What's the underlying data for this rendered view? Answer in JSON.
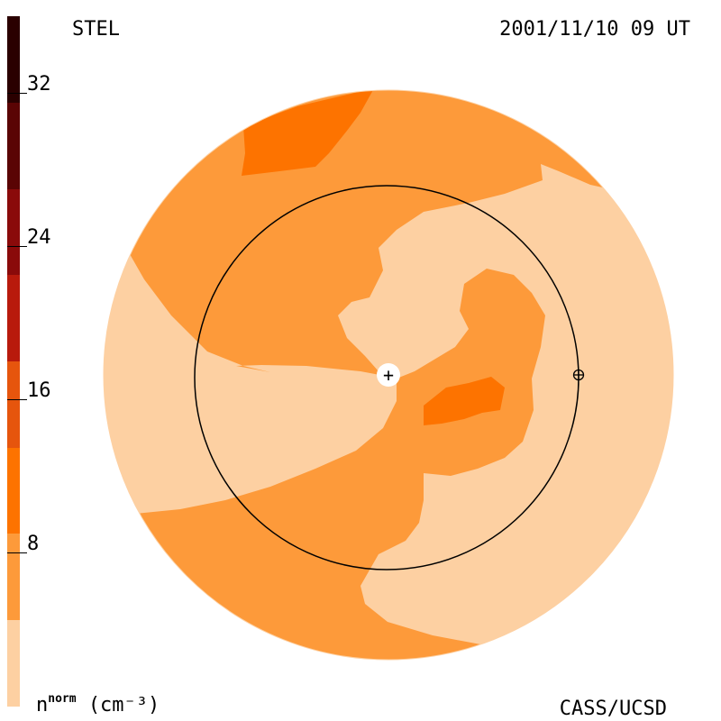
{
  "header": {
    "source": "STEL",
    "timestamp": "2001/11/10 09 UT"
  },
  "footer": {
    "units_base": "n",
    "units_sup": "norm",
    "units_rest": "(cm⁻³)",
    "credit": "CASS/UCSD"
  },
  "colorbar": {
    "levels": [
      {
        "color": "#fdd0a2"
      },
      {
        "color": "#fd9a3a"
      },
      {
        "color": "#fd7300"
      },
      {
        "color": "#e6550d"
      },
      {
        "color": "#b81a0c"
      },
      {
        "color": "#8a0a0a"
      },
      {
        "color": "#5a0404"
      },
      {
        "color": "#2a0000"
      }
    ],
    "ticks": [
      {
        "label": "8",
        "value": 8
      },
      {
        "label": "16",
        "value": 16
      },
      {
        "label": "24",
        "value": 24
      },
      {
        "label": "32",
        "value": 32
      }
    ],
    "min": 0,
    "max": 36
  },
  "map": {
    "colors": {
      "low": "#fdd0a2",
      "mid": "#fd9a3a",
      "high": "#fd7300"
    },
    "markers": {
      "sun": "+",
      "earth": "⊕"
    }
  }
}
